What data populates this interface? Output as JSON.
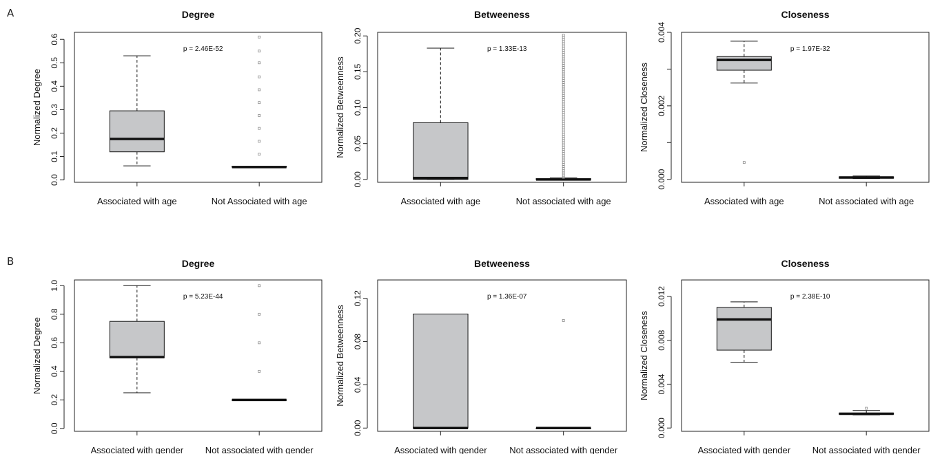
{
  "panel_labels": [
    "A",
    "B"
  ],
  "colors": {
    "box_fill": "#c6c7c9",
    "median": "#111111",
    "outlier": "#888888",
    "frame": "#222222"
  },
  "chart_data": [
    {
      "type": "boxplot",
      "row": 0,
      "col": 0,
      "title": "Degree",
      "ylabel": "Normalized Degree",
      "categories": [
        "Associated with age",
        "Not Associated with age"
      ],
      "ylim": [
        -0.01,
        0.63
      ],
      "yticks": [
        0.0,
        0.1,
        0.2,
        0.3,
        0.4,
        0.5,
        0.6
      ],
      "ytick_labels": [
        "0.0",
        "0.1",
        "0.2",
        "0.3",
        "0.4",
        "0.5",
        "0.6"
      ],
      "annotation": "p = 2.46E-52",
      "boxes": [
        {
          "whisker_low": 0.06,
          "q1": 0.12,
          "median": 0.175,
          "q3": 0.295,
          "whisker_high": 0.53,
          "outliers": []
        },
        {
          "whisker_low": 0.055,
          "q1": 0.055,
          "median": 0.055,
          "q3": 0.058,
          "whisker_high": 0.058,
          "outliers": [
            0.11,
            0.165,
            0.22,
            0.275,
            0.33,
            0.385,
            0.44,
            0.5,
            0.55,
            0.61
          ]
        }
      ]
    },
    {
      "type": "boxplot",
      "row": 0,
      "col": 1,
      "title": "Betweeness",
      "ylabel": "Normalized Betweenness",
      "categories": [
        "Associated with age",
        "Not associated with age"
      ],
      "ylim": [
        -0.004,
        0.205
      ],
      "yticks": [
        0.0,
        0.05,
        0.1,
        0.15,
        0.2
      ],
      "ytick_labels": [
        "0.00",
        "0.05",
        "0.10",
        "0.15",
        "0.20"
      ],
      "annotation": "p = 1.33E-13",
      "boxes": [
        {
          "whisker_low": 0.0,
          "q1": 0.0,
          "median": 0.002,
          "q3": 0.079,
          "whisker_high": 0.183,
          "outliers": []
        },
        {
          "whisker_low": 0.0,
          "q1": 0.0,
          "median": 0.0,
          "q3": 0.001,
          "whisker_high": 0.002,
          "outliers": [
            0.003,
            0.006,
            0.009,
            0.012,
            0.015,
            0.018,
            0.021,
            0.024,
            0.027,
            0.03,
            0.033,
            0.036,
            0.039,
            0.042,
            0.045,
            0.048,
            0.051,
            0.054,
            0.057,
            0.06,
            0.063,
            0.066,
            0.069,
            0.072,
            0.075,
            0.078,
            0.081,
            0.084,
            0.087,
            0.09,
            0.093,
            0.096,
            0.099,
            0.102,
            0.105,
            0.108,
            0.111,
            0.114,
            0.117,
            0.12,
            0.123,
            0.126,
            0.129,
            0.132,
            0.135,
            0.138,
            0.141,
            0.144,
            0.147,
            0.15,
            0.153,
            0.156,
            0.159,
            0.162,
            0.165,
            0.168,
            0.171,
            0.174,
            0.177,
            0.18,
            0.183,
            0.186,
            0.189,
            0.192,
            0.195,
            0.198,
            0.201
          ]
        }
      ]
    },
    {
      "type": "boxplot",
      "row": 0,
      "col": 2,
      "title": "Closeness",
      "ylabel": "Normalized Closeness",
      "categories": [
        "Associated with age",
        "Not associated with age"
      ],
      "ylim": [
        -8e-05,
        0.004
      ],
      "yticks": [
        0.0,
        0.001,
        0.002,
        0.003,
        0.004
      ],
      "ytick_labels": [
        "0.000",
        "",
        "0.002",
        "",
        "0.004"
      ],
      "annotation": "p = 1.97E-32",
      "boxes": [
        {
          "whisker_low": 0.00262,
          "q1": 0.00297,
          "median": 0.00325,
          "q3": 0.00334,
          "whisker_high": 0.00376,
          "outliers": [
            0.00046
          ]
        },
        {
          "whisker_low": 2e-05,
          "q1": 3e-05,
          "median": 5e-05,
          "q3": 7e-05,
          "whisker_high": 9e-05,
          "outliers": []
        }
      ]
    },
    {
      "type": "boxplot",
      "row": 1,
      "col": 0,
      "title": "Degree",
      "ylabel": "Normalized Degree",
      "categories": [
        "Associated with gender",
        "Not associated with gender"
      ],
      "ylim": [
        -0.02,
        1.04
      ],
      "yticks": [
        0.0,
        0.2,
        0.4,
        0.6,
        0.8,
        1.0
      ],
      "ytick_labels": [
        "0.0",
        "0.2",
        "0.4",
        "0.6",
        "0.8",
        "1.0"
      ],
      "annotation": "p = 5.23E-44",
      "boxes": [
        {
          "whisker_low": 0.25,
          "q1": 0.495,
          "median": 0.5,
          "q3": 0.75,
          "whisker_high": 1.0,
          "outliers": []
        },
        {
          "whisker_low": 0.2,
          "q1": 0.2,
          "median": 0.2,
          "q3": 0.2,
          "whisker_high": 0.2,
          "outliers": [
            0.4,
            0.6,
            0.8,
            1.0
          ]
        }
      ]
    },
    {
      "type": "boxplot",
      "row": 1,
      "col": 1,
      "title": "Betweeness",
      "ylabel": "Normalized Betweenness",
      "categories": [
        "Associated with gender",
        "Not associated with gender"
      ],
      "ylim": [
        -0.003,
        0.137
      ],
      "yticks": [
        0.0,
        0.04,
        0.08,
        0.12
      ],
      "ytick_labels": [
        "0.00",
        "0.04",
        "0.08",
        "0.12"
      ],
      "annotation": "p = 1.36E-07",
      "boxes": [
        {
          "whisker_low": 0.0,
          "q1": 0.0,
          "median": 0.0,
          "q3": 0.1055,
          "whisker_high": 0.1055,
          "outliers": []
        },
        {
          "whisker_low": 0.0,
          "q1": 0.0,
          "median": 0.0,
          "q3": 0.0,
          "whisker_high": 0.0,
          "outliers": [
            0.0995
          ]
        }
      ]
    },
    {
      "type": "boxplot",
      "row": 1,
      "col": 2,
      "title": "Closeness",
      "ylabel": "Normalized Closeness",
      "categories": [
        "Associated with gender",
        "Not associated with gender"
      ],
      "ylim": [
        -0.0003,
        0.0135
      ],
      "yticks": [
        0.0,
        0.004,
        0.008,
        0.012
      ],
      "ytick_labels": [
        "0.000",
        "0.004",
        "0.008",
        "0.012"
      ],
      "annotation": "p = 2.38E-10",
      "boxes": [
        {
          "whisker_low": 0.006,
          "q1": 0.0071,
          "median": 0.0099,
          "q3": 0.011,
          "whisker_high": 0.0115,
          "outliers": []
        },
        {
          "whisker_low": 0.0012,
          "q1": 0.00125,
          "median": 0.0013,
          "q3": 0.00137,
          "whisker_high": 0.0016,
          "outliers": [
            0.0018
          ]
        }
      ]
    }
  ]
}
